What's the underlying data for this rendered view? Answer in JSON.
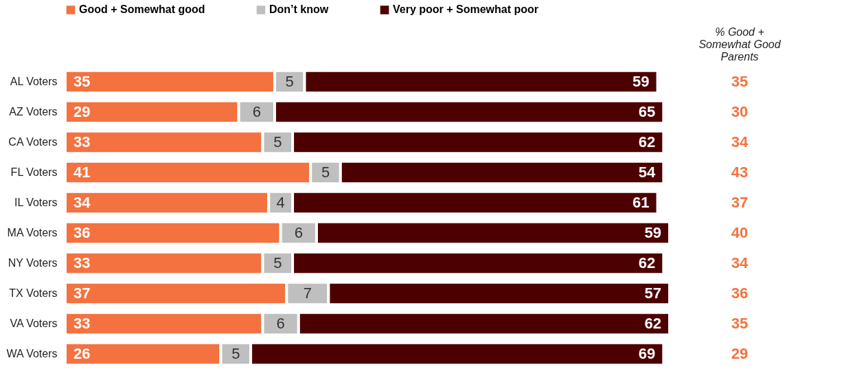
{
  "chart_data": {
    "type": "bar",
    "orientation": "horizontal",
    "stacked": true,
    "data_labels": true,
    "legend": "top",
    "grid": false,
    "categories": [
      "AL Voters",
      "AZ Voters",
      "CA Voters",
      "FL Voters",
      "IL Voters",
      "MA Voters",
      "NY Voters",
      "TX Voters",
      "VA Voters",
      "WA Voters"
    ],
    "series": [
      {
        "name": "Good + Somewhat good",
        "color": "#f37240",
        "values": [
          35,
          29,
          33,
          41,
          34,
          36,
          33,
          37,
          33,
          26
        ]
      },
      {
        "name": "Don’t know",
        "color": "#bfbfbf",
        "values": [
          5,
          6,
          5,
          5,
          4,
          6,
          5,
          7,
          6,
          5
        ]
      },
      {
        "name": "Very poor + Somewhat poor",
        "color": "#4d0000",
        "values": [
          59,
          65,
          62,
          54,
          61,
          59,
          62,
          57,
          62,
          69
        ]
      }
    ],
    "annotations": [
      "% Good +\nSomewhat Good\nParents",
      "35",
      "30",
      "34",
      "43",
      "37",
      "40",
      "34",
      "36",
      "35",
      "29"
    ]
  }
}
